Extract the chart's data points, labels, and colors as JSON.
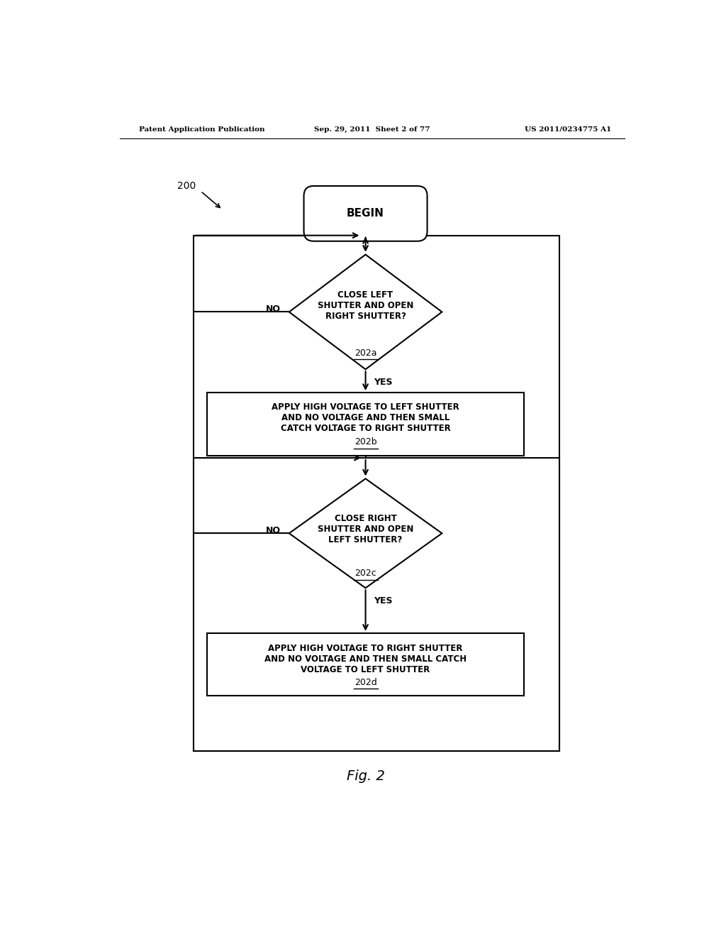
{
  "bg_color": "#ffffff",
  "header_left": "Patent Application Publication",
  "header_center": "Sep. 29, 2011  Sheet 2 of 77",
  "header_right": "US 2011/0234775 A1",
  "figure_label": "Fig. 2",
  "diagram_label": "200",
  "begin_text": "BEGIN",
  "diamond1_text": "CLOSE LEFT\nSHUTTER AND OPEN\nRIGHT SHUTTER?",
  "diamond1_label": "202a",
  "box1_text": "APPLY HIGH VOLTAGE TO LEFT SHUTTER\nAND NO VOLTAGE AND THEN SMALL\nCATCH VOLTAGE TO RIGHT SHUTTER",
  "box1_label": "202b",
  "diamond2_text": "CLOSE RIGHT\nSHUTTER AND OPEN\nLEFT SHUTTER?",
  "diamond2_label": "202c",
  "box2_text": "APPLY HIGH VOLTAGE TO RIGHT SHUTTER\nAND NO VOLTAGE AND THEN SMALL CATCH\nVOLTAGE TO LEFT SHUTTER",
  "box2_label": "202d",
  "yes_label": "YES",
  "no_label": "NO",
  "line_color": "#000000",
  "text_color": "#000000",
  "line_width": 1.5
}
